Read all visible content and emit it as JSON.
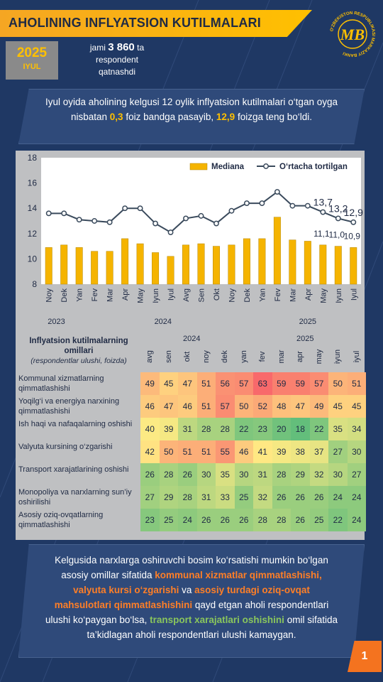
{
  "header": {
    "title": "AHOLINING INFLYATSION KUTILMALARI",
    "year": "2025",
    "month": "IYUL",
    "resp_pre": "jami",
    "resp_count": "3 860",
    "resp_post": "ta",
    "resp_line2": "respondent",
    "resp_line3": "qatnashdi",
    "logo_text": "O'ZBEKISTON RESPUBLIKASI MARKAZIY BANKI",
    "logo_mark": "MB"
  },
  "intro": {
    "t1": "Iyul oyida aholining kelgusi 12 oylik inflyatsion kutilmalari o‘tgan oyga nisbatan ",
    "v1": "0,3",
    "t2": " foiz bandga pasayib, ",
    "v2": "12,9",
    "t3": " foizga teng bo‘ldi."
  },
  "colors": {
    "bar": "#f5b400",
    "line": "#3a4a5c",
    "marker_fill": "#ffffff",
    "accent_orange": "#ff7f27",
    "accent_green": "#8ac65c",
    "accent_yellow": "#ffc000"
  },
  "chart_data": {
    "type": "bar+line",
    "categories": [
      "Noy",
      "Dek",
      "Yan",
      "Fev",
      "Mar",
      "Apr",
      "May",
      "Iyun",
      "Iyul",
      "Avg",
      "Sen",
      "Okt",
      "Noy",
      "Dek",
      "Yan",
      "Fev",
      "Mar",
      "Apr",
      "May",
      "Iyun",
      "Iyul"
    ],
    "year_groups": [
      {
        "label": "2023",
        "from": 0,
        "to": 1
      },
      {
        "label": "2024",
        "from": 2,
        "to": 13
      },
      {
        "label": "2025",
        "from": 14,
        "to": 20
      }
    ],
    "series": [
      {
        "name": "Mediana",
        "type": "bar",
        "values": [
          10.9,
          11.1,
          10.9,
          10.6,
          10.6,
          11.6,
          11.2,
          10.5,
          10.2,
          11.1,
          11.2,
          11.0,
          11.1,
          11.6,
          11.6,
          13.3,
          11.5,
          11.4,
          11.1,
          11.0,
          10.9
        ]
      },
      {
        "name": "O‘rtacha tortilgan",
        "type": "line",
        "values": [
          13.6,
          13.6,
          13.1,
          13.0,
          12.9,
          14.0,
          14.0,
          12.8,
          12.1,
          13.2,
          13.4,
          12.8,
          13.8,
          14.4,
          14.4,
          15.3,
          14.2,
          14.2,
          13.7,
          13.2,
          12.9
        ]
      }
    ],
    "annotations": [
      {
        "index": 18,
        "series": "O‘rtacha tortilgan",
        "text": "13,7"
      },
      {
        "index": 19,
        "series": "O‘rtacha tortilgan",
        "text": "13,2"
      },
      {
        "index": 20,
        "series": "O‘rtacha tortilgan",
        "text": "12,9"
      },
      {
        "index": 18,
        "series": "Mediana",
        "text": "11,1"
      },
      {
        "index": 19,
        "series": "Mediana",
        "text": "11,0"
      },
      {
        "index": 20,
        "series": "Mediana",
        "text": "10,9"
      }
    ],
    "yticks": [
      "8",
      "10",
      "12",
      "14",
      "16",
      "18"
    ],
    "ylim": [
      8,
      18
    ],
    "legend_position": "top-right",
    "grid": false
  },
  "table": {
    "title_bold": "Inflyatsion kutilmalarning omillari",
    "title_ital": "(respondentlar ulushi, foizda)",
    "year_2024": "2024",
    "year_2025": "2025",
    "months": [
      "avg",
      "sen",
      "okt",
      "noy",
      "dek",
      "yan",
      "fev",
      "mar",
      "apr",
      "may",
      "iyun",
      "iyul"
    ],
    "rows": [
      {
        "label": "Kommunal xizmatlarning qimmatlashishi",
        "values": [
          49,
          45,
          47,
          51,
          56,
          57,
          63,
          59,
          59,
          57,
          50,
          51
        ]
      },
      {
        "label": "Yoqilg‘i va energiya narxining qimmatlashishi",
        "values": [
          46,
          47,
          46,
          51,
          57,
          50,
          52,
          48,
          47,
          49,
          45,
          45
        ]
      },
      {
        "label": "Ish haqi va nafaqalarning oshishi",
        "values": [
          40,
          39,
          31,
          28,
          28,
          22,
          23,
          20,
          18,
          22,
          35,
          34
        ]
      },
      {
        "label": "Valyuta kursining o‘zgarishi",
        "values": [
          42,
          50,
          51,
          51,
          55,
          46,
          41,
          39,
          38,
          37,
          27,
          30
        ]
      },
      {
        "label": "Transport xarajatlarining oshishi",
        "values": [
          26,
          28,
          26,
          30,
          35,
          30,
          31,
          28,
          29,
          32,
          30,
          27
        ]
      },
      {
        "label": "Monopoliya va narxlarning sun’iy oshirilishi",
        "values": [
          27,
          29,
          28,
          31,
          33,
          25,
          32,
          26,
          26,
          26,
          24,
          24
        ]
      },
      {
        "label": "Asosiy oziq-ovqatlarning qimmatlashishi",
        "values": [
          23,
          25,
          24,
          26,
          26,
          26,
          28,
          28,
          26,
          25,
          22,
          24
        ]
      }
    ]
  },
  "footer": {
    "t1": "Kelgusida narxlarga oshiruvchi bosim ko‘rsatishi mumkin bo‘lgan asosiy omillar sifatida ",
    "o1": "kommunal xizmatlar qimmatlashishi, valyuta kursi o‘zgarishi",
    "t2": " va ",
    "o2": "asosiy turdagi oziq-ovqat mahsulotlari qimmatlashishini",
    "t3": "  qayd etgan aholi respondentlari ulushi ko‘paygan bo‘lsa, ",
    "g1": "transport xarajatlari oshishini",
    "t4": " omil sifatida ta’kidlagan aholi respondentlari ulushi kamaygan.",
    "page": "1"
  }
}
